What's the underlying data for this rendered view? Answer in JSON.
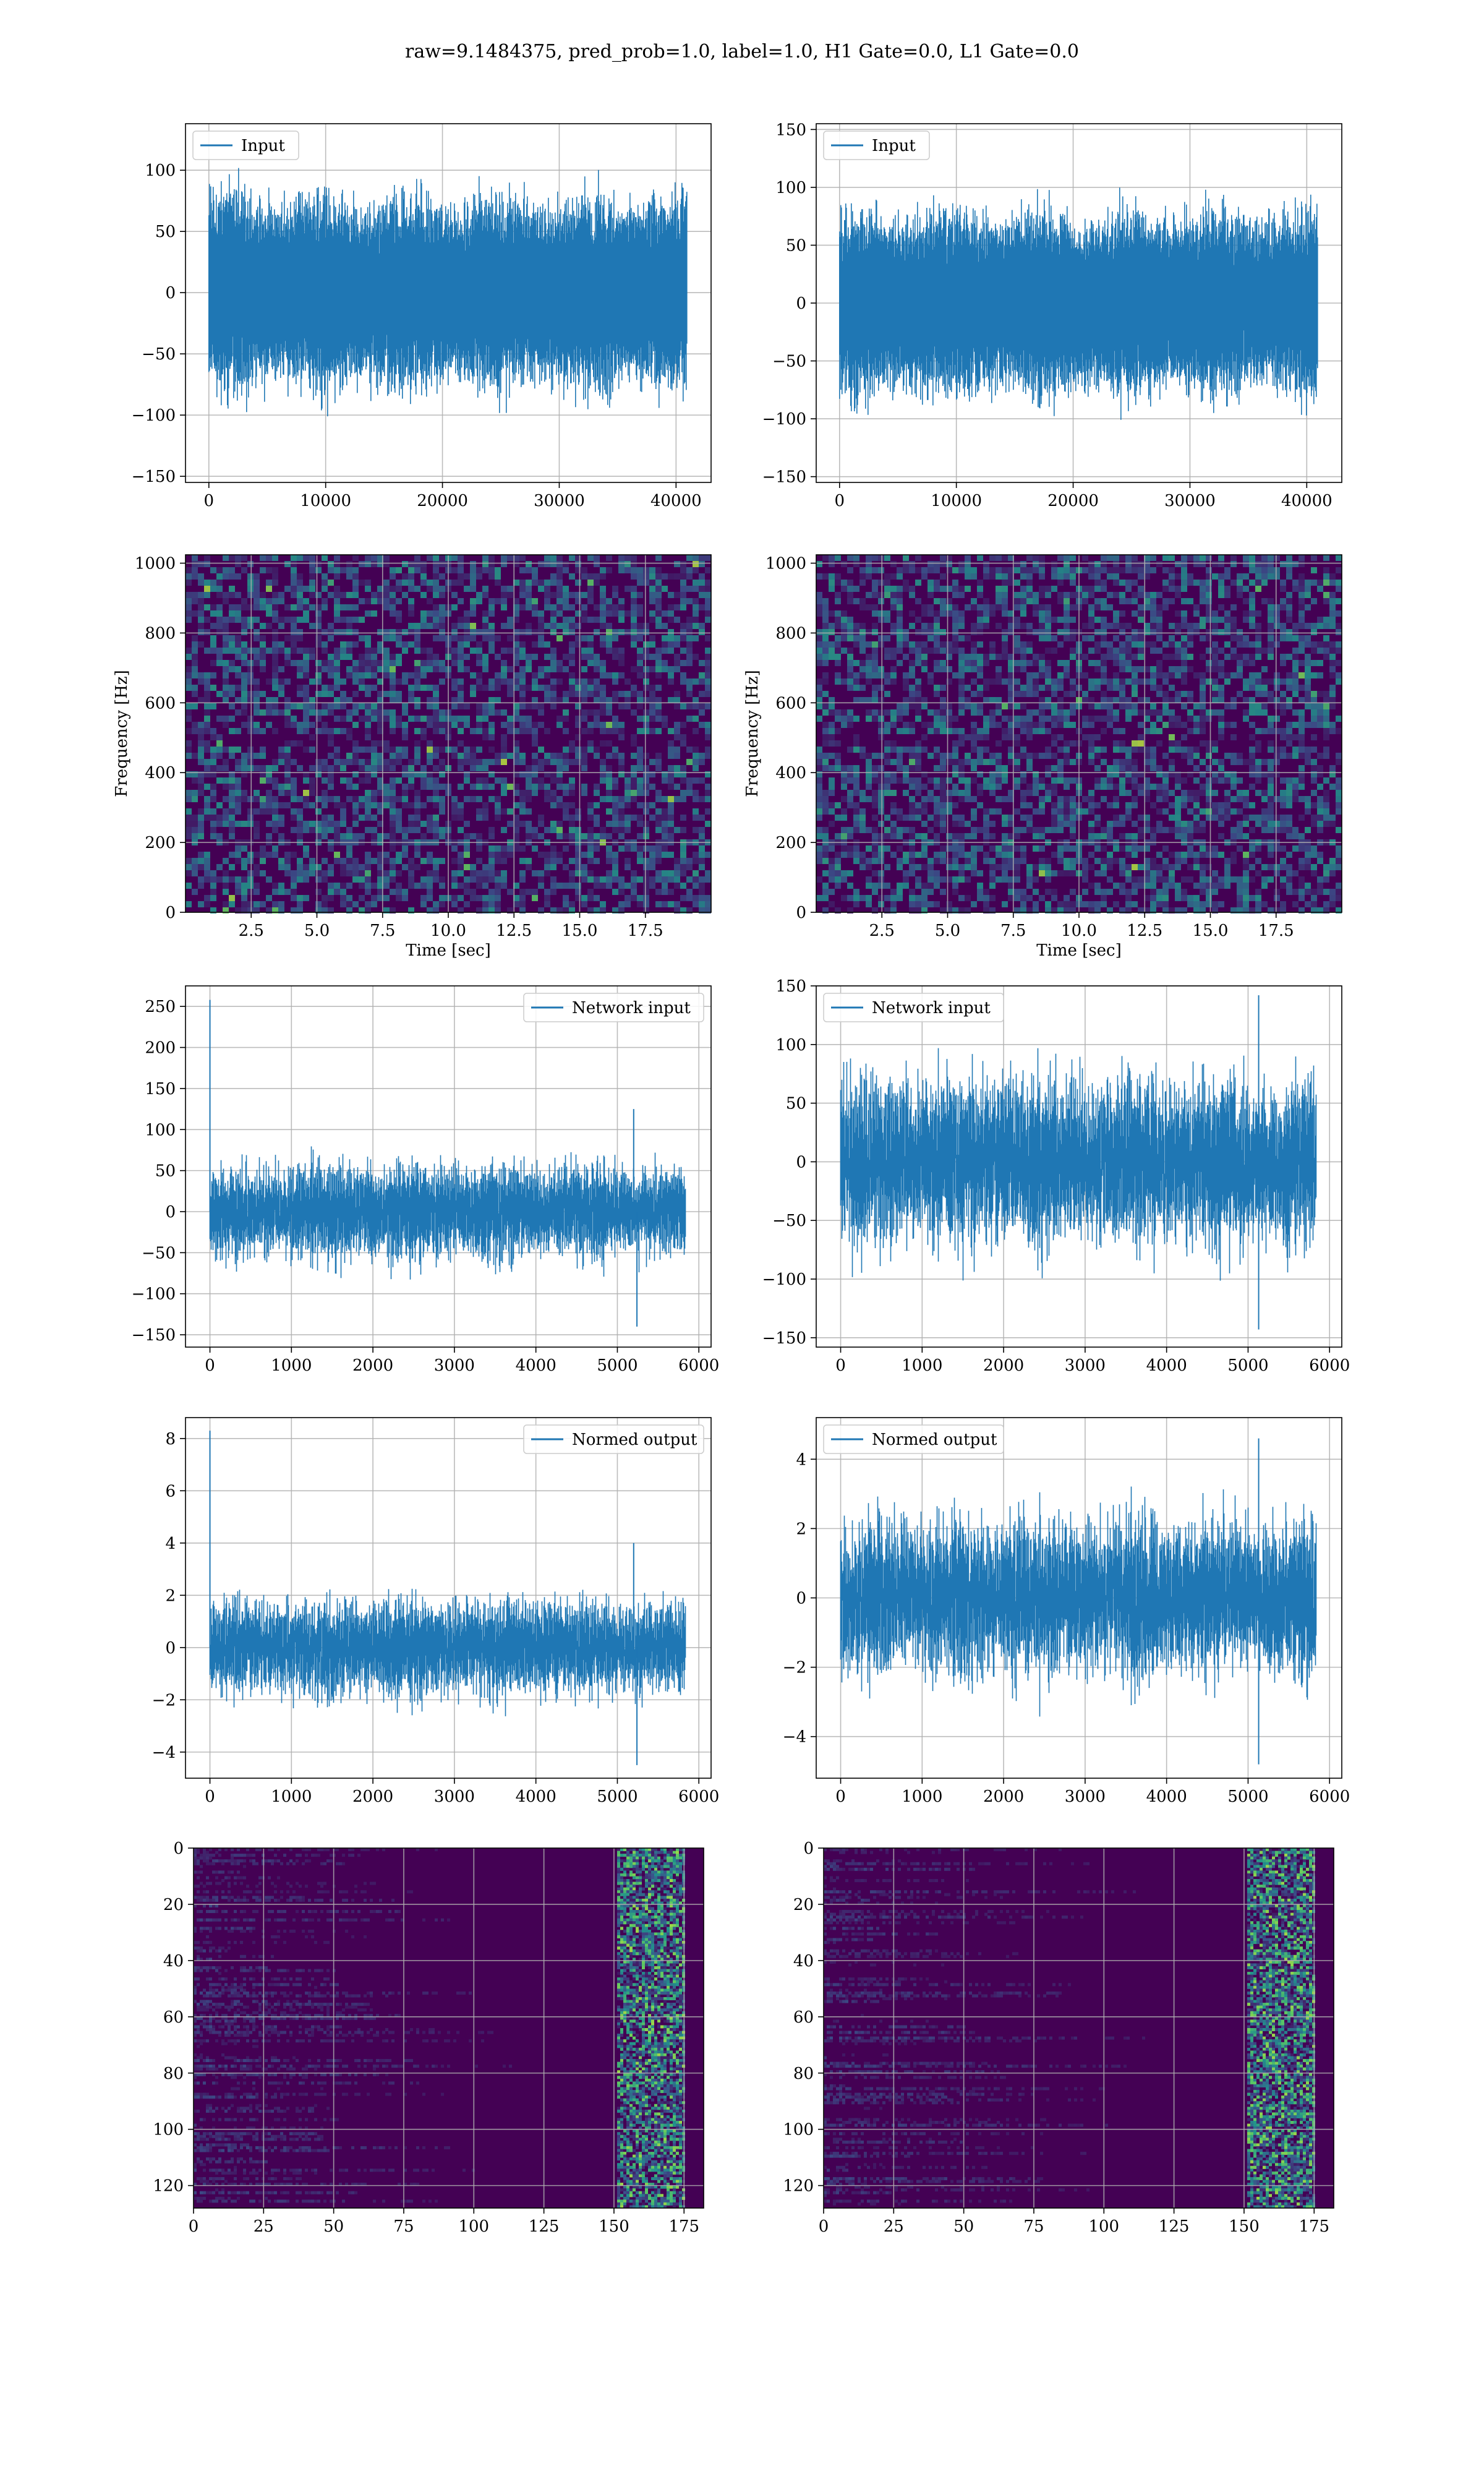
{
  "suptitle": "raw=9.1484375, pred_prob=1.0, label=1.0, H1 Gate=0.0, L1 Gate=0.0",
  "colors": {
    "line": "#1f77b4",
    "grid": "#b0b0b0",
    "viridis_dark": "#440154",
    "viridis_low": "#472d7b",
    "viridis_mid": "#21918c",
    "viridis_high": "#5ec962",
    "viridis_max": "#fde725"
  },
  "chart_data": [
    {
      "id": "input-h1",
      "type": "line",
      "legend": "Input",
      "n_samples": 40960,
      "amplitude": 30,
      "spikes": [],
      "xticks": [
        "0",
        "10000",
        "20000",
        "30000",
        "40000"
      ],
      "yticks": [
        "−150",
        "−100",
        "−50",
        "0",
        "50",
        "100"
      ],
      "xlim": [
        -2000,
        43000
      ],
      "ylim": [
        -155,
        138
      ],
      "xtick_values": [
        0,
        10000,
        20000,
        30000,
        40000
      ],
      "ytick_values": [
        -150,
        -100,
        -50,
        0,
        50,
        100
      ],
      "xlabel": "",
      "ylabel": "",
      "grid": true,
      "legend_loc": "upper left"
    },
    {
      "id": "input-l1",
      "type": "line",
      "legend": "Input",
      "n_samples": 40960,
      "amplitude": 30,
      "spikes": [],
      "xticks": [
        "0",
        "10000",
        "20000",
        "30000",
        "40000"
      ],
      "yticks": [
        "−150",
        "−100",
        "−50",
        "0",
        "50",
        "100",
        "150"
      ],
      "xlim": [
        -2000,
        43000
      ],
      "ylim": [
        -155,
        155
      ],
      "xtick_values": [
        0,
        10000,
        20000,
        30000,
        40000
      ],
      "ytick_values": [
        -150,
        -100,
        -50,
        0,
        50,
        100,
        150
      ],
      "xlabel": "",
      "ylabel": "",
      "grid": true,
      "legend_loc": "upper left"
    },
    {
      "id": "spec-h1",
      "type": "heatmap",
      "colormap": "viridis",
      "xticks": [
        "2.5",
        "5.0",
        "7.5",
        "10.0",
        "12.5",
        "15.0",
        "17.5"
      ],
      "yticks": [
        "0",
        "200",
        "400",
        "600",
        "800",
        "1000"
      ],
      "xlim": [
        0,
        20
      ],
      "ylim": [
        0,
        1024
      ],
      "xtick_values": [
        2.5,
        5.0,
        7.5,
        10.0,
        12.5,
        15.0,
        17.5
      ],
      "ytick_values": [
        0,
        200,
        400,
        600,
        800,
        1000
      ],
      "xlabel": "Time [sec]",
      "ylabel": "Frequency [Hz]",
      "grid": true
    },
    {
      "id": "spec-l1",
      "type": "heatmap",
      "colormap": "viridis",
      "xticks": [
        "2.5",
        "5.0",
        "7.5",
        "10.0",
        "12.5",
        "15.0",
        "17.5"
      ],
      "yticks": [
        "0",
        "200",
        "400",
        "600",
        "800",
        "1000"
      ],
      "xlim": [
        0,
        20
      ],
      "ylim": [
        0,
        1024
      ],
      "xtick_values": [
        2.5,
        5.0,
        7.5,
        10.0,
        12.5,
        15.0,
        17.5
      ],
      "ytick_values": [
        0,
        200,
        400,
        600,
        800,
        1000
      ],
      "xlabel": "Time [sec]",
      "ylabel": "Frequency [Hz]",
      "grid": true
    },
    {
      "id": "netin-h1",
      "type": "line",
      "legend": "Network input",
      "n_samples": 5840,
      "amplitude": 27,
      "spikes": [
        [
          0,
          258
        ],
        [
          5200,
          125
        ],
        [
          5240,
          -140
        ]
      ],
      "xticks": [
        "0",
        "1000",
        "2000",
        "3000",
        "4000",
        "5000",
        "6000"
      ],
      "yticks": [
        "−150",
        "−100",
        "−50",
        "0",
        "50",
        "100",
        "150",
        "200",
        "250"
      ],
      "xlim": [
        -300,
        6150
      ],
      "ylim": [
        -165,
        275
      ],
      "xtick_values": [
        0,
        1000,
        2000,
        3000,
        4000,
        5000,
        6000
      ],
      "ytick_values": [
        -150,
        -100,
        -50,
        0,
        50,
        100,
        150,
        200,
        250
      ],
      "xlabel": "",
      "ylabel": "",
      "grid": true,
      "legend_loc": "upper right"
    },
    {
      "id": "netin-l1",
      "type": "line",
      "legend": "Network input",
      "n_samples": 5840,
      "amplitude": 32,
      "spikes": [
        [
          5130,
          142
        ],
        [
          5130,
          -143
        ]
      ],
      "xticks": [
        "0",
        "1000",
        "2000",
        "3000",
        "4000",
        "5000",
        "6000"
      ],
      "yticks": [
        "−150",
        "−100",
        "−50",
        "0",
        "50",
        "100",
        "150"
      ],
      "xlim": [
        -300,
        6150
      ],
      "ylim": [
        -158,
        150
      ],
      "xtick_values": [
        0,
        1000,
        2000,
        3000,
        4000,
        5000,
        6000
      ],
      "ytick_values": [
        -150,
        -100,
        -50,
        0,
        50,
        100,
        150
      ],
      "xlabel": "",
      "ylabel": "",
      "grid": true,
      "legend_loc": "upper left"
    },
    {
      "id": "normed-h1",
      "type": "line",
      "legend": "Normed output",
      "n_samples": 5840,
      "amplitude": 0.85,
      "spikes": [
        [
          0,
          8.3
        ],
        [
          5200,
          4.0
        ],
        [
          5240,
          -4.5
        ]
      ],
      "xticks": [
        "0",
        "1000",
        "2000",
        "3000",
        "4000",
        "5000",
        "6000"
      ],
      "yticks": [
        "−4",
        "−2",
        "0",
        "2",
        "4",
        "6",
        "8"
      ],
      "xlim": [
        -300,
        6150
      ],
      "ylim": [
        -5,
        8.8
      ],
      "xtick_values": [
        0,
        1000,
        2000,
        3000,
        4000,
        5000,
        6000
      ],
      "ytick_values": [
        -4,
        -2,
        0,
        2,
        4,
        6,
        8
      ],
      "xlabel": "",
      "ylabel": "",
      "grid": true,
      "legend_loc": "upper right"
    },
    {
      "id": "normed-l1",
      "type": "line",
      "legend": "Normed output",
      "n_samples": 5840,
      "amplitude": 1.0,
      "spikes": [
        [
          5130,
          4.6
        ],
        [
          5130,
          -4.8
        ]
      ],
      "xticks": [
        "0",
        "1000",
        "2000",
        "3000",
        "4000",
        "5000",
        "6000"
      ],
      "yticks": [
        "−4",
        "−2",
        "0",
        "2",
        "4"
      ],
      "xlim": [
        -300,
        6150
      ],
      "ylim": [
        -5.2,
        5.2
      ],
      "xtick_values": [
        0,
        1000,
        2000,
        3000,
        4000,
        5000,
        6000
      ],
      "ytick_values": [
        -4,
        -2,
        0,
        2,
        4
      ],
      "xlabel": "",
      "ylabel": "",
      "grid": true,
      "legend_loc": "upper left"
    },
    {
      "id": "feat-h1",
      "type": "heatmap",
      "colormap": "viridis",
      "xticks": [
        "0",
        "25",
        "50",
        "75",
        "100",
        "125",
        "150",
        "175"
      ],
      "yticks": [
        "0",
        "20",
        "40",
        "60",
        "80",
        "100",
        "120"
      ],
      "xlim": [
        0,
        182
      ],
      "ylim": [
        128,
        0
      ],
      "xtick_values": [
        0,
        25,
        50,
        75,
        100,
        125,
        150,
        175
      ],
      "ytick_values": [
        0,
        20,
        40,
        60,
        80,
        100,
        120
      ],
      "xlabel": "",
      "ylabel": "",
      "grid": true
    },
    {
      "id": "feat-l1",
      "type": "heatmap",
      "colormap": "viridis",
      "xticks": [
        "0",
        "25",
        "50",
        "75",
        "100",
        "125",
        "150",
        "175"
      ],
      "yticks": [
        "0",
        "20",
        "40",
        "60",
        "80",
        "100",
        "120"
      ],
      "xlim": [
        0,
        182
      ],
      "ylim": [
        128,
        0
      ],
      "xtick_values": [
        0,
        25,
        50,
        75,
        100,
        125,
        150,
        175
      ],
      "ytick_values": [
        0,
        20,
        40,
        60,
        80,
        100,
        120
      ],
      "xlabel": "",
      "ylabel": "",
      "grid": true
    }
  ]
}
